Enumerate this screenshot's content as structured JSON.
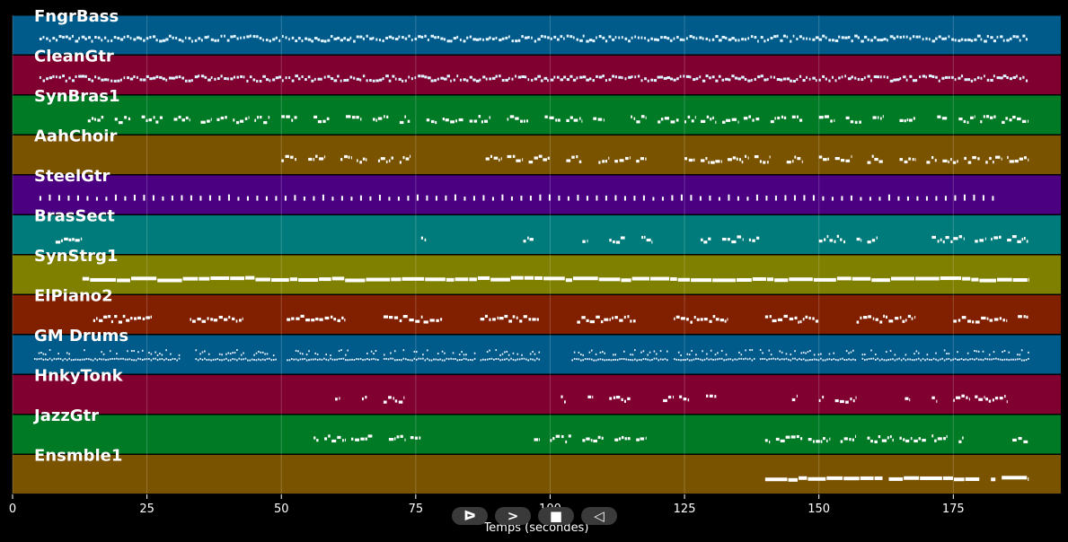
{
  "chart_data": {
    "type": "piano-roll",
    "xlabel": "Temps (secondes)",
    "xlim": [
      0,
      195
    ],
    "xticks": [
      0,
      25,
      50,
      75,
      100,
      125,
      150,
      175
    ],
    "grid": true,
    "tracks": [
      {
        "name": "FngrBass",
        "color": "#005a8a",
        "pattern": "dense",
        "segments": [
          [
            5,
            189
          ]
        ]
      },
      {
        "name": "CleanGtr",
        "color": "#800030",
        "pattern": "dense",
        "segments": [
          [
            5,
            189
          ]
        ]
      },
      {
        "name": "SynBras1",
        "color": "#007a25",
        "pattern": "phrases",
        "segments": [
          [
            14,
            17
          ],
          [
            19,
            22
          ],
          [
            24,
            28
          ],
          [
            30,
            33
          ],
          [
            35,
            37
          ],
          [
            38,
            40
          ],
          [
            41,
            44
          ],
          [
            45,
            48
          ],
          [
            50,
            53
          ],
          [
            56,
            59
          ],
          [
            62,
            65
          ],
          [
            67,
            70
          ],
          [
            72,
            74
          ],
          [
            77,
            79
          ],
          [
            80,
            84
          ],
          [
            85,
            89
          ],
          [
            92,
            96
          ],
          [
            99,
            102
          ],
          [
            103,
            106
          ],
          [
            108,
            110
          ],
          [
            115,
            118
          ],
          [
            120,
            124
          ],
          [
            125,
            127
          ],
          [
            128,
            131
          ],
          [
            132,
            135
          ],
          [
            136,
            139
          ],
          [
            141,
            144
          ],
          [
            145,
            147
          ],
          [
            150,
            153
          ],
          [
            155,
            158
          ],
          [
            160,
            162
          ],
          [
            165,
            168
          ],
          [
            172,
            174
          ],
          [
            176,
            179
          ],
          [
            180,
            183
          ],
          [
            184,
            186
          ],
          [
            186,
            189
          ]
        ]
      },
      {
        "name": "AahChoir",
        "color": "#7a5300",
        "pattern": "phrases",
        "segments": [
          [
            50,
            53
          ],
          [
            55,
            58
          ],
          [
            61,
            63
          ],
          [
            64,
            66
          ],
          [
            68,
            71
          ],
          [
            72,
            74
          ],
          [
            88,
            91
          ],
          [
            92,
            95
          ],
          [
            96,
            100
          ],
          [
            103,
            106
          ],
          [
            109,
            111
          ],
          [
            112,
            115
          ],
          [
            116,
            118
          ],
          [
            125,
            127
          ],
          [
            128,
            132
          ],
          [
            133,
            137
          ],
          [
            138,
            141
          ],
          [
            144,
            147
          ],
          [
            150,
            152
          ],
          [
            153,
            156
          ],
          [
            159,
            162
          ],
          [
            165,
            168
          ],
          [
            170,
            172
          ],
          [
            173,
            176
          ],
          [
            177,
            180
          ],
          [
            181,
            184
          ],
          [
            185,
            189
          ]
        ]
      },
      {
        "name": "SteelGtr",
        "color": "#4b0082",
        "pattern": "sparse",
        "segments": [
          [
            5,
            183
          ]
        ]
      },
      {
        "name": "BrasSect",
        "color": "#007b7b",
        "pattern": "phrases",
        "segments": [
          [
            8,
            13
          ],
          [
            76,
            77
          ],
          [
            95,
            97
          ],
          [
            106,
            107
          ],
          [
            111,
            114
          ],
          [
            117,
            119
          ],
          [
            128,
            130
          ],
          [
            132,
            136
          ],
          [
            137,
            139
          ],
          [
            150,
            155
          ],
          [
            157,
            158
          ],
          [
            159,
            161
          ],
          [
            171,
            177
          ],
          [
            179,
            181
          ],
          [
            182,
            184
          ],
          [
            185,
            189
          ]
        ]
      },
      {
        "name": "SynStrg1",
        "color": "#7f7f00",
        "pattern": "legato",
        "segments": [
          [
            13,
            189
          ]
        ]
      },
      {
        "name": "ElPiano2",
        "color": "#802000",
        "pattern": "phrases",
        "segments": [
          [
            15,
            26
          ],
          [
            33,
            43
          ],
          [
            51,
            62
          ],
          [
            69,
            80
          ],
          [
            87,
            98
          ],
          [
            105,
            116
          ],
          [
            123,
            133
          ],
          [
            140,
            150
          ],
          [
            157,
            168
          ],
          [
            175,
            185
          ],
          [
            187,
            189
          ]
        ]
      },
      {
        "name": "GM Drums",
        "color": "#005a8a",
        "pattern": "drums",
        "segments": [
          [
            4,
            31
          ],
          [
            34,
            49
          ],
          [
            51,
            68
          ],
          [
            69,
            86
          ],
          [
            87,
            98
          ],
          [
            104,
            122
          ],
          [
            123,
            138
          ],
          [
            139,
            157
          ],
          [
            158,
            176
          ],
          [
            176,
            189
          ]
        ]
      },
      {
        "name": "HnkyTonk",
        "color": "#800030",
        "pattern": "phrases",
        "segments": [
          [
            60,
            61
          ],
          [
            65,
            66
          ],
          [
            69,
            73
          ],
          [
            102,
            103
          ],
          [
            107,
            108
          ],
          [
            111,
            115
          ],
          [
            121,
            123
          ],
          [
            124,
            126
          ],
          [
            129,
            131
          ],
          [
            145,
            146
          ],
          [
            150,
            151
          ],
          [
            153,
            157
          ],
          [
            166,
            167
          ],
          [
            171,
            172
          ],
          [
            175,
            178
          ],
          [
            179,
            181
          ],
          [
            181,
            185
          ]
        ]
      },
      {
        "name": "JazzGtr",
        "color": "#007a25",
        "pattern": "phrases",
        "segments": [
          [
            56,
            57
          ],
          [
            58,
            62
          ],
          [
            63,
            67
          ],
          [
            70,
            73
          ],
          [
            74,
            76
          ],
          [
            97,
            98
          ],
          [
            100,
            104
          ],
          [
            106,
            110
          ],
          [
            112,
            115
          ],
          [
            116,
            118
          ],
          [
            140,
            141
          ],
          [
            142,
            147
          ],
          [
            148,
            152
          ],
          [
            154,
            157
          ],
          [
            159,
            164
          ],
          [
            165,
            170
          ],
          [
            171,
            174
          ],
          [
            176,
            177
          ],
          [
            186,
            189
          ]
        ]
      },
      {
        "name": "Ensmble1",
        "color": "#7a5300",
        "pattern": "legato",
        "segments": [
          [
            140,
            162
          ],
          [
            163,
            180
          ],
          [
            182,
            183
          ],
          [
            184,
            189
          ]
        ]
      }
    ]
  },
  "controls": {
    "play_label": "ᐅ",
    "forward_label": ">",
    "stop_label": "■",
    "back_label": "◁"
  }
}
